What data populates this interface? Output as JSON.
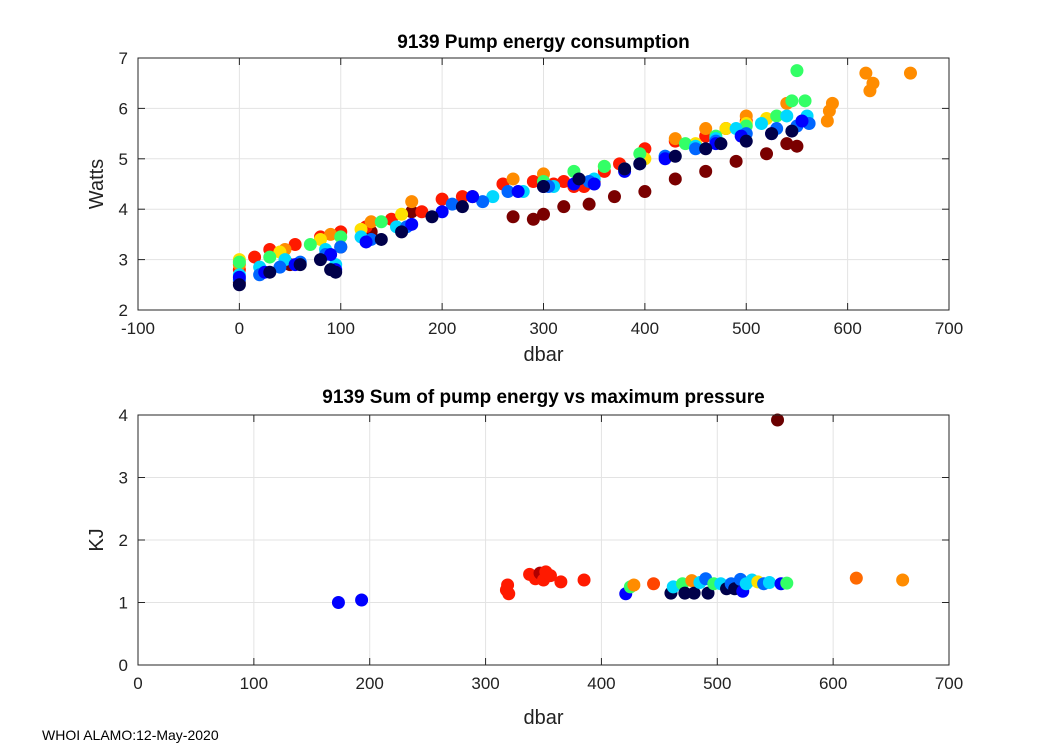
{
  "footer": "WHOI ALAMO:12-May-2020",
  "chart_data": [
    {
      "type": "scatter",
      "title": "9139 Pump energy consumption",
      "xlabel": "dbar",
      "ylabel": "Watts",
      "xlim": [
        -100,
        700
      ],
      "ylim": [
        2,
        7
      ],
      "xticks": [
        -100,
        0,
        100,
        200,
        300,
        400,
        500,
        600,
        700
      ],
      "yticks": [
        2,
        3,
        4,
        5,
        6,
        7
      ],
      "grid": true,
      "series": [
        {
          "name": "dark-red profiles",
          "color": "#7a0000",
          "x": [
            0,
            50,
            100,
            130,
            170,
            230,
            270,
            290,
            300,
            320,
            345,
            370,
            400,
            430,
            460,
            490,
            520,
            540,
            550
          ],
          "y": [
            2.55,
            2.9,
            3.25,
            3.55,
            3.95,
            4.25,
            3.85,
            3.8,
            3.9,
            4.05,
            4.1,
            4.25,
            4.35,
            4.6,
            4.75,
            4.95,
            5.1,
            5.3,
            5.25
          ]
        },
        {
          "name": "red profiles",
          "color": "#ff1a00",
          "x": [
            0,
            15,
            30,
            55,
            80,
            100,
            125,
            150,
            180,
            200,
            220,
            260,
            290,
            300,
            310,
            320,
            330,
            340,
            350,
            360,
            375,
            400,
            430,
            460,
            480,
            500
          ],
          "y": [
            2.8,
            3.05,
            3.2,
            3.3,
            3.45,
            3.55,
            3.65,
            3.8,
            3.95,
            4.2,
            4.25,
            4.5,
            4.55,
            4.5,
            4.5,
            4.55,
            4.45,
            4.45,
            4.55,
            4.75,
            4.9,
            5.2,
            5.35,
            5.45,
            5.6,
            5.75
          ]
        },
        {
          "name": "orange profiles",
          "color": "#ff8c00",
          "x": [
            0,
            45,
            90,
            130,
            170,
            270,
            300,
            430,
            460,
            500,
            540,
            580,
            582,
            585,
            618,
            622,
            625,
            662
          ],
          "y": [
            2.9,
            3.2,
            3.5,
            3.75,
            4.15,
            4.6,
            4.7,
            5.4,
            5.6,
            5.85,
            6.1,
            5.75,
            5.95,
            6.1,
            6.7,
            6.35,
            6.5,
            6.7
          ]
        },
        {
          "name": "yellow profiles",
          "color": "#ffe000",
          "x": [
            0,
            40,
            80,
            120,
            160,
            360,
            400,
            450,
            480,
            500,
            520
          ],
          "y": [
            3.0,
            3.15,
            3.4,
            3.6,
            3.9,
            4.85,
            5.0,
            5.3,
            5.6,
            5.7,
            5.8
          ]
        },
        {
          "name": "green profiles",
          "color": "#33ff66",
          "x": [
            0,
            30,
            70,
            100,
            140,
            300,
            330,
            360,
            395,
            440,
            470,
            500,
            530,
            545,
            550,
            558
          ],
          "y": [
            2.95,
            3.05,
            3.3,
            3.45,
            3.75,
            4.55,
            4.75,
            4.85,
            5.1,
            5.3,
            5.45,
            5.65,
            5.85,
            6.15,
            6.75,
            6.15
          ]
        },
        {
          "name": "cyan profiles",
          "color": "#00d8ff",
          "x": [
            0,
            20,
            45,
            85,
            95,
            120,
            155,
            250,
            280,
            310,
            350,
            380,
            420,
            450,
            470,
            490,
            515,
            540,
            560
          ],
          "y": [
            2.7,
            2.85,
            3.0,
            3.2,
            2.9,
            3.45,
            3.65,
            4.25,
            4.35,
            4.45,
            4.6,
            4.8,
            5.05,
            5.25,
            5.4,
            5.6,
            5.7,
            5.85,
            5.85
          ]
        },
        {
          "name": "medium blue profiles",
          "color": "#0066ff",
          "x": [
            0,
            20,
            40,
            60,
            85,
            100,
            130,
            165,
            210,
            240,
            265,
            305,
            345,
            395,
            420,
            450,
            470,
            500,
            530,
            550,
            562
          ],
          "y": [
            2.6,
            2.7,
            2.85,
            2.95,
            3.1,
            3.25,
            3.4,
            3.65,
            4.1,
            4.15,
            4.35,
            4.45,
            4.55,
            4.9,
            5.05,
            5.2,
            5.35,
            5.5,
            5.6,
            5.65,
            5.7
          ]
        },
        {
          "name": "blue profiles",
          "color": "#0000ff",
          "x": [
            0,
            25,
            55,
            90,
            95,
            125,
            170,
            200,
            230,
            275,
            300,
            330,
            350,
            380,
            420,
            470,
            495,
            525,
            555
          ],
          "y": [
            2.65,
            2.75,
            2.9,
            3.1,
            2.8,
            3.35,
            3.7,
            3.95,
            4.25,
            4.35,
            4.45,
            4.5,
            4.5,
            4.75,
            5.0,
            5.3,
            5.45,
            5.5,
            5.75
          ]
        },
        {
          "name": "navy profiles",
          "color": "#00004a",
          "x": [
            0,
            30,
            60,
            80,
            90,
            95,
            140,
            160,
            190,
            220,
            300,
            335,
            380,
            395,
            430,
            460,
            475,
            500,
            525,
            545
          ],
          "y": [
            2.5,
            2.75,
            2.9,
            3.0,
            2.8,
            2.75,
            3.4,
            3.55,
            3.85,
            4.05,
            4.45,
            4.6,
            4.8,
            4.9,
            5.05,
            5.2,
            5.3,
            5.35,
            5.5,
            5.55
          ]
        }
      ]
    },
    {
      "type": "scatter",
      "title": "9139 Sum of pump energy vs maximum pressure",
      "xlabel": "dbar",
      "ylabel": "KJ",
      "xlim": [
        0,
        700
      ],
      "ylim": [
        0,
        4
      ],
      "xticks": [
        0,
        100,
        200,
        300,
        400,
        500,
        600,
        700
      ],
      "yticks": [
        0,
        1,
        2,
        3,
        4
      ],
      "grid": true,
      "points": [
        {
          "x": 173,
          "y": 1.0,
          "color": "#0000ff"
        },
        {
          "x": 193,
          "y": 1.04,
          "color": "#0000ff"
        },
        {
          "x": 318,
          "y": 1.2,
          "color": "#ff1a00"
        },
        {
          "x": 319,
          "y": 1.28,
          "color": "#ff1a00"
        },
        {
          "x": 320,
          "y": 1.14,
          "color": "#ff1a00"
        },
        {
          "x": 338,
          "y": 1.45,
          "color": "#ff1a00"
        },
        {
          "x": 343,
          "y": 1.38,
          "color": "#ff1a00"
        },
        {
          "x": 347,
          "y": 1.47,
          "color": "#b00000"
        },
        {
          "x": 350,
          "y": 1.36,
          "color": "#ff1a00"
        },
        {
          "x": 352,
          "y": 1.49,
          "color": "#ff1a00"
        },
        {
          "x": 356,
          "y": 1.43,
          "color": "#ff1a00"
        },
        {
          "x": 365,
          "y": 1.33,
          "color": "#ff1a00"
        },
        {
          "x": 385,
          "y": 1.36,
          "color": "#ff1a00"
        },
        {
          "x": 421,
          "y": 1.14,
          "color": "#0000ff"
        },
        {
          "x": 425,
          "y": 1.25,
          "color": "#33ff66"
        },
        {
          "x": 428,
          "y": 1.28,
          "color": "#ff8c00"
        },
        {
          "x": 445,
          "y": 1.3,
          "color": "#ff4500"
        },
        {
          "x": 460,
          "y": 1.15,
          "color": "#00004a"
        },
        {
          "x": 462,
          "y": 1.25,
          "color": "#00d8ff"
        },
        {
          "x": 470,
          "y": 1.3,
          "color": "#33ff66"
        },
        {
          "x": 472,
          "y": 1.15,
          "color": "#00004a"
        },
        {
          "x": 478,
          "y": 1.35,
          "color": "#ff8c00"
        },
        {
          "x": 480,
          "y": 1.15,
          "color": "#00004a"
        },
        {
          "x": 485,
          "y": 1.32,
          "color": "#00d8ff"
        },
        {
          "x": 490,
          "y": 1.38,
          "color": "#0066ff"
        },
        {
          "x": 492,
          "y": 1.15,
          "color": "#00004a"
        },
        {
          "x": 497,
          "y": 1.3,
          "color": "#33ff66"
        },
        {
          "x": 503,
          "y": 1.3,
          "color": "#00d8ff"
        },
        {
          "x": 508,
          "y": 1.22,
          "color": "#00004a"
        },
        {
          "x": 512,
          "y": 1.3,
          "color": "#0066ff"
        },
        {
          "x": 515,
          "y": 1.22,
          "color": "#00004a"
        },
        {
          "x": 520,
          "y": 1.37,
          "color": "#0066ff"
        },
        {
          "x": 522,
          "y": 1.18,
          "color": "#0000ff"
        },
        {
          "x": 525,
          "y": 1.3,
          "color": "#00d8ff"
        },
        {
          "x": 530,
          "y": 1.36,
          "color": "#00d8ff"
        },
        {
          "x": 535,
          "y": 1.33,
          "color": "#ffe000"
        },
        {
          "x": 540,
          "y": 1.3,
          "color": "#0066ff"
        },
        {
          "x": 545,
          "y": 1.32,
          "color": "#00d8ff"
        },
        {
          "x": 552,
          "y": 3.92,
          "color": "#6a0000"
        },
        {
          "x": 555,
          "y": 1.3,
          "color": "#0000ff"
        },
        {
          "x": 560,
          "y": 1.31,
          "color": "#33ff66"
        },
        {
          "x": 620,
          "y": 1.39,
          "color": "#ff6a00"
        },
        {
          "x": 660,
          "y": 1.36,
          "color": "#ff8c00"
        }
      ]
    }
  ]
}
